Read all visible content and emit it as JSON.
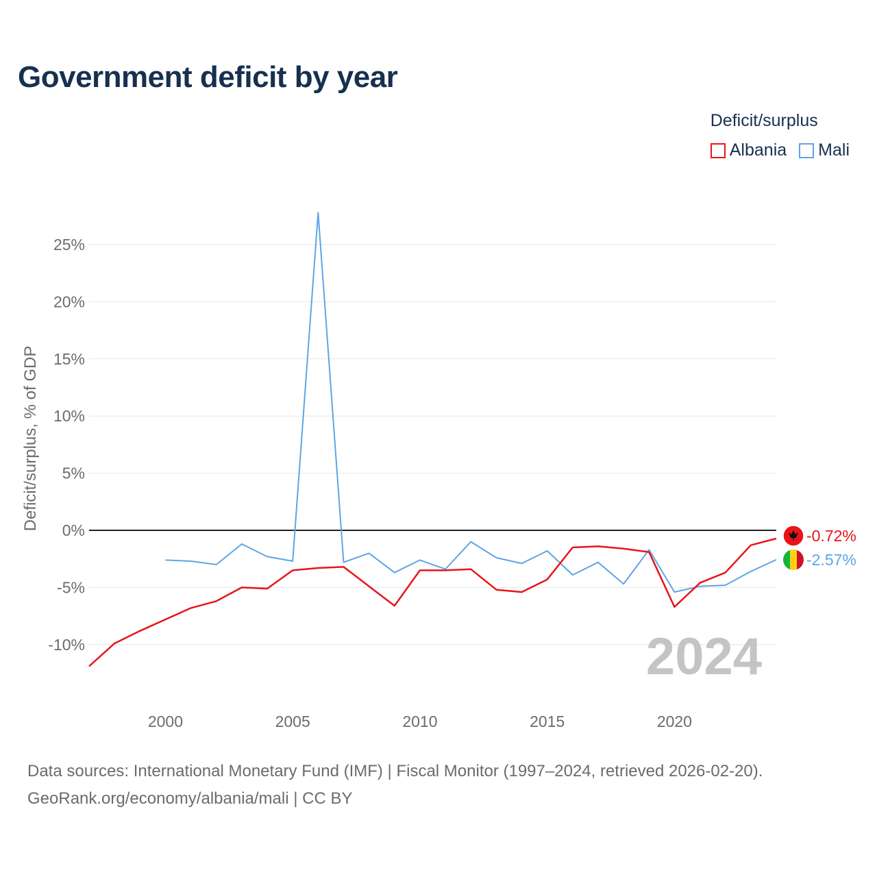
{
  "title": "Government deficit by year",
  "legend": {
    "title": "Deficit/surplus",
    "items": [
      {
        "label": "Albania",
        "color": "#e8141a"
      },
      {
        "label": "Mali",
        "color": "#5da4e6"
      }
    ]
  },
  "footer": {
    "line1": "Data sources: International Monetary Fund (IMF) | Fiscal Monitor (1997–2024, retrieved 2026-02-20).",
    "line2": "GeoRank.org/economy/albania/mali | CC BY"
  },
  "chart_data": {
    "type": "line",
    "title": "Government deficit by year",
    "xlabel": "",
    "ylabel": "Deficit/surplus, % of GDP",
    "xlim": [
      1997,
      2024
    ],
    "ylim": [
      -14,
      28
    ],
    "x_ticks": [
      2000,
      2005,
      2010,
      2015,
      2020
    ],
    "y_ticks": [
      -10,
      -5,
      0,
      5,
      10,
      15,
      20,
      25
    ],
    "y_tick_labels": [
      "-10%",
      "-5%",
      "0%",
      "5%",
      "10%",
      "15%",
      "20%",
      "25%"
    ],
    "watermark_year": "2024",
    "series": [
      {
        "name": "Albania",
        "color": "#e8141a",
        "end_label": "-0.72%",
        "flag": "albania",
        "x": [
          1997,
          1998,
          1999,
          2000,
          2001,
          2002,
          2003,
          2004,
          2005,
          2006,
          2007,
          2008,
          2009,
          2010,
          2011,
          2012,
          2013,
          2014,
          2015,
          2016,
          2017,
          2018,
          2019,
          2020,
          2021,
          2022,
          2023,
          2024
        ],
        "values": [
          -11.9,
          -9.9,
          -8.8,
          -7.8,
          -6.8,
          -6.2,
          -5.0,
          -5.1,
          -3.5,
          -3.3,
          -3.2,
          -4.9,
          -6.6,
          -3.5,
          -3.5,
          -3.4,
          -5.2,
          -5.4,
          -4.3,
          -1.5,
          -1.4,
          -1.6,
          -1.9,
          -6.7,
          -4.6,
          -3.7,
          -1.3,
          -0.72
        ]
      },
      {
        "name": "Mali",
        "color": "#5da4e6",
        "end_label": "-2.57%",
        "flag": "mali",
        "x": [
          2000,
          2001,
          2002,
          2003,
          2004,
          2005,
          2006,
          2007,
          2008,
          2009,
          2010,
          2011,
          2012,
          2013,
          2014,
          2015,
          2016,
          2017,
          2018,
          2019,
          2020,
          2021,
          2022,
          2023,
          2024
        ],
        "values": [
          -2.6,
          -2.7,
          -3.0,
          -1.2,
          -2.3,
          -2.7,
          27.8,
          -2.8,
          -2.0,
          -3.7,
          -2.6,
          -3.4,
          -1.0,
          -2.4,
          -2.9,
          -1.8,
          -3.9,
          -2.8,
          -4.7,
          -1.7,
          -5.4,
          -4.9,
          -4.8,
          -3.6,
          -2.57
        ]
      }
    ]
  }
}
